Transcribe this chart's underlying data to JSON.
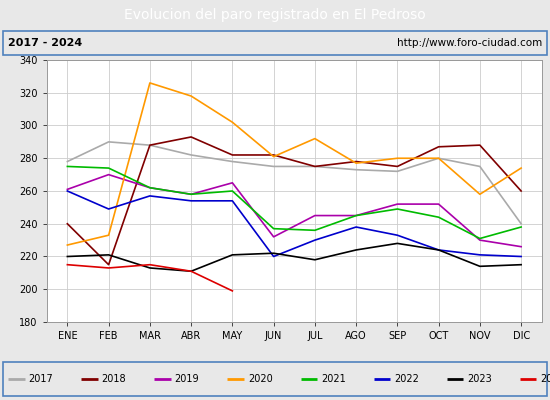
{
  "title": "Evolucion del paro registrado en El Pedroso",
  "subtitle_left": "2017 - 2024",
  "subtitle_right": "http://www.foro-ciudad.com",
  "months": [
    "ENE",
    "FEB",
    "MAR",
    "ABR",
    "MAY",
    "JUN",
    "JUL",
    "AGO",
    "SEP",
    "OCT",
    "NOV",
    "DIC"
  ],
  "ylim": [
    180,
    340
  ],
  "yticks": [
    180,
    200,
    220,
    240,
    260,
    280,
    300,
    320,
    340
  ],
  "series": {
    "2017": {
      "color": "#aaaaaa",
      "values": [
        278,
        290,
        288,
        282,
        278,
        275,
        275,
        273,
        272,
        280,
        275,
        240
      ]
    },
    "2018": {
      "color": "#800000",
      "values": [
        240,
        215,
        288,
        293,
        282,
        282,
        275,
        278,
        275,
        287,
        288,
        260
      ]
    },
    "2019": {
      "color": "#aa00aa",
      "values": [
        261,
        270,
        262,
        258,
        265,
        232,
        245,
        245,
        252,
        252,
        230,
        226
      ]
    },
    "2020": {
      "color": "#ff9900",
      "values": [
        227,
        233,
        326,
        318,
        302,
        281,
        292,
        277,
        280,
        280,
        258,
        274
      ]
    },
    "2021": {
      "color": "#00bb00",
      "values": [
        275,
        274,
        262,
        258,
        260,
        237,
        236,
        245,
        249,
        244,
        231,
        238
      ]
    },
    "2022": {
      "color": "#0000cc",
      "values": [
        260,
        249,
        257,
        254,
        254,
        220,
        230,
        238,
        233,
        224,
        221,
        220
      ]
    },
    "2023": {
      "color": "#000000",
      "values": [
        220,
        221,
        213,
        211,
        221,
        222,
        218,
        224,
        228,
        224,
        214,
        215
      ]
    },
    "2024": {
      "color": "#dd0000",
      "values": [
        215,
        213,
        215,
        211,
        199,
        null,
        null,
        null,
        null,
        null,
        null,
        null
      ]
    }
  },
  "background_color": "#e8e8e8",
  "plot_bg_color": "#ffffff",
  "title_bg_color": "#4f81bd",
  "title_color": "#ffffff",
  "grid_color": "#cccccc",
  "legend_bg": "#e8e8e8",
  "border_color": "#4f81bd",
  "subtitle_bg": "#e8e8e8"
}
